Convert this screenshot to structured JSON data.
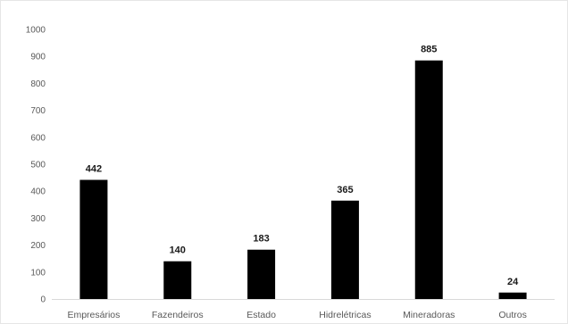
{
  "chart_data": {
    "type": "bar",
    "title": "",
    "xlabel": "",
    "ylabel": "",
    "categories": [
      "Empresários",
      "Fazendeiros",
      "Estado",
      "Hidrelétricas",
      "Mineradoras",
      "Outros"
    ],
    "values": [
      442,
      140,
      183,
      365,
      885,
      24
    ],
    "ylim": [
      0,
      1000
    ],
    "yticks": [
      0,
      100,
      200,
      300,
      400,
      500,
      600,
      700,
      800,
      900,
      1000
    ],
    "yticklabels": [
      "0",
      "100",
      "200",
      "300",
      "400",
      "500",
      "600",
      "700",
      "800",
      "900",
      "1000"
    ],
    "data_labels": [
      "442",
      "140",
      "183",
      "365",
      "885",
      "24"
    ],
    "grid": false,
    "legend": "none",
    "bar_color": "#000000"
  }
}
